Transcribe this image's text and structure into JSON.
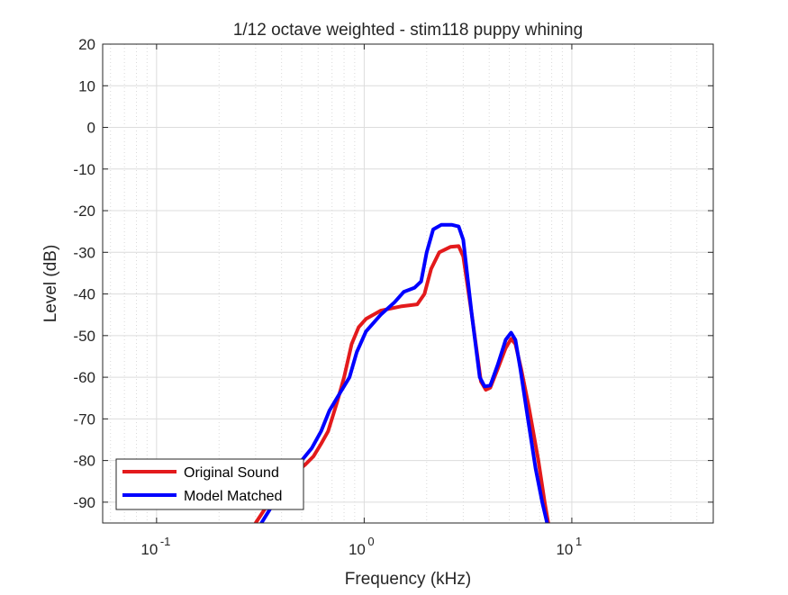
{
  "chart_data": {
    "type": "line",
    "title": "1/12 octave weighted - stim118 puppy whining",
    "xlabel": "Frequency (kHz)",
    "ylabel": "Level (dB)",
    "xscale": "log",
    "xlim": [
      0.055,
      48
    ],
    "ylim": [
      -95,
      20
    ],
    "xticks": [
      0.1,
      1,
      10
    ],
    "xtick_labels": [
      {
        "base": "10",
        "exp": "-1"
      },
      {
        "base": "10",
        "exp": "0"
      },
      {
        "base": "10",
        "exp": "1"
      }
    ],
    "yticks": [
      20,
      10,
      0,
      -10,
      -20,
      -30,
      -40,
      -50,
      -60,
      -70,
      -80,
      -90
    ],
    "grid": true,
    "minor_grid": true,
    "legend_position": "bottom-left",
    "series": [
      {
        "name": "Original Sound",
        "color": "#e31a1c",
        "points": [
          [
            0.3,
            -95
          ],
          [
            0.36,
            -89
          ],
          [
            0.44,
            -84
          ],
          [
            0.52,
            -81
          ],
          [
            0.57,
            -79
          ],
          [
            0.62,
            -76
          ],
          [
            0.67,
            -73
          ],
          [
            0.74,
            -66
          ],
          [
            0.8,
            -60
          ],
          [
            0.87,
            -52
          ],
          [
            0.94,
            -48
          ],
          [
            1.02,
            -46
          ],
          [
            1.2,
            -44
          ],
          [
            1.5,
            -43
          ],
          [
            1.8,
            -42.5
          ],
          [
            1.95,
            -40
          ],
          [
            2.1,
            -34
          ],
          [
            2.3,
            -30
          ],
          [
            2.6,
            -28.7
          ],
          [
            2.85,
            -28.5
          ],
          [
            3.0,
            -31
          ],
          [
            3.3,
            -45
          ],
          [
            3.65,
            -61
          ],
          [
            3.85,
            -63
          ],
          [
            4.05,
            -62.5
          ],
          [
            4.4,
            -58
          ],
          [
            4.8,
            -53
          ],
          [
            5.1,
            -50.8
          ],
          [
            5.35,
            -52
          ],
          [
            5.7,
            -58
          ],
          [
            6.2,
            -67
          ],
          [
            6.9,
            -80
          ],
          [
            7.4,
            -90
          ],
          [
            7.7,
            -95
          ]
        ]
      },
      {
        "name": "Model Matched",
        "color": "#0000ff",
        "points": [
          [
            0.32,
            -95
          ],
          [
            0.38,
            -89
          ],
          [
            0.46,
            -84
          ],
          [
            0.5,
            -80
          ],
          [
            0.56,
            -77
          ],
          [
            0.62,
            -73
          ],
          [
            0.68,
            -68
          ],
          [
            0.76,
            -64
          ],
          [
            0.85,
            -60
          ],
          [
            0.92,
            -54
          ],
          [
            1.02,
            -49
          ],
          [
            1.2,
            -45
          ],
          [
            1.4,
            -42
          ],
          [
            1.55,
            -39.5
          ],
          [
            1.75,
            -38.5
          ],
          [
            1.88,
            -37
          ],
          [
            2.0,
            -30
          ],
          [
            2.15,
            -24.5
          ],
          [
            2.35,
            -23.4
          ],
          [
            2.65,
            -23.4
          ],
          [
            2.85,
            -23.8
          ],
          [
            3.0,
            -27
          ],
          [
            3.3,
            -45
          ],
          [
            3.6,
            -60
          ],
          [
            3.8,
            -62.2
          ],
          [
            4.05,
            -62
          ],
          [
            4.4,
            -57
          ],
          [
            4.8,
            -51
          ],
          [
            5.1,
            -49.3
          ],
          [
            5.35,
            -51
          ],
          [
            5.65,
            -58
          ],
          [
            6.1,
            -69
          ],
          [
            6.7,
            -82
          ],
          [
            7.2,
            -90
          ],
          [
            7.6,
            -95
          ]
        ]
      }
    ]
  }
}
